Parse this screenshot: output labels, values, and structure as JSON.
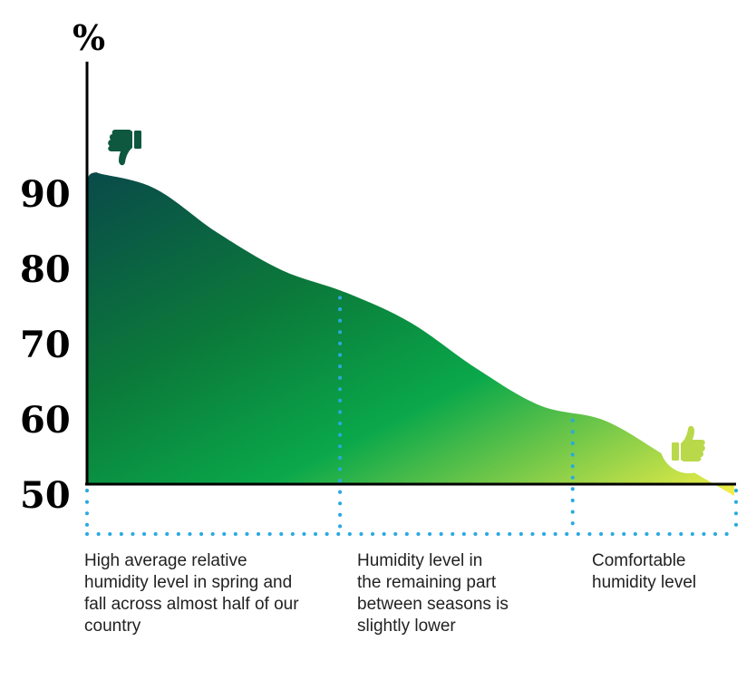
{
  "chart_data": {
    "type": "area",
    "ylabel": "%",
    "yticks": [
      90,
      80,
      70,
      60,
      50
    ],
    "x": [
      0,
      1,
      2,
      3,
      4,
      5,
      6,
      7,
      8,
      9,
      10
    ],
    "values": [
      93,
      91,
      85,
      80,
      77,
      73,
      67,
      62,
      60,
      55,
      50
    ],
    "dividers_at_x": [
      3.9,
      7.5
    ],
    "icons": {
      "left": "thumbs-down-icon",
      "right": "thumbs-up-icon"
    },
    "gradient_colors": [
      "#0a4a4a",
      "#0b7a3a",
      "#0aa84a",
      "#f4ef48"
    ],
    "divider_color": "#29a9e1",
    "segments": [
      {
        "label": "High average relative\nhumidity level in spring and\nfall across almost half of our\ncountry"
      },
      {
        "label": "Humidity level in\nthe remaining part\nbetween seasons is\nslightly lower"
      },
      {
        "label": "Comfortable\nhumidity level"
      }
    ]
  }
}
